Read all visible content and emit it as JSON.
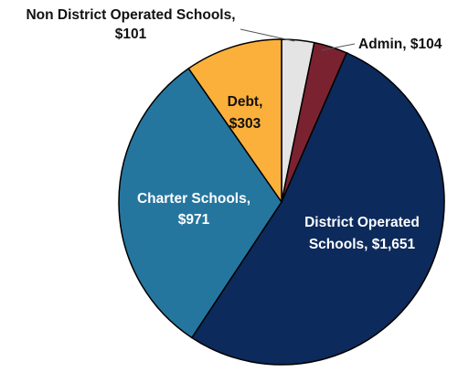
{
  "chart_data": {
    "type": "pie",
    "title": "",
    "slices": [
      {
        "label": "Non District Operated Schools",
        "value": 101,
        "value_text": "$101",
        "color": "#e4e4e4"
      },
      {
        "label": "Admin",
        "value": 104,
        "value_text": "$104",
        "color": "#7b2230"
      },
      {
        "label": "District Operated Schools",
        "value": 1651,
        "value_text": "$1,651",
        "color": "#0c2a5b"
      },
      {
        "label": "Charter Schools",
        "value": 971,
        "value_text": "$971",
        "color": "#25769f"
      },
      {
        "label": "Debt",
        "value": 303,
        "value_text": "$303",
        "color": "#fbb03b"
      }
    ],
    "labels": {
      "non_district": {
        "line1": "Non District Operated Schools,",
        "line2": "$101"
      },
      "admin": {
        "line1": "Admin, $104"
      },
      "district": {
        "line1": "District Operated",
        "line2": "Schools, $1,651"
      },
      "charter": {
        "line1": "Charter Schools,",
        "line2": "$971"
      },
      "debt": {
        "line1": "Debt,",
        "line2": "$303"
      }
    },
    "legend": "none"
  }
}
